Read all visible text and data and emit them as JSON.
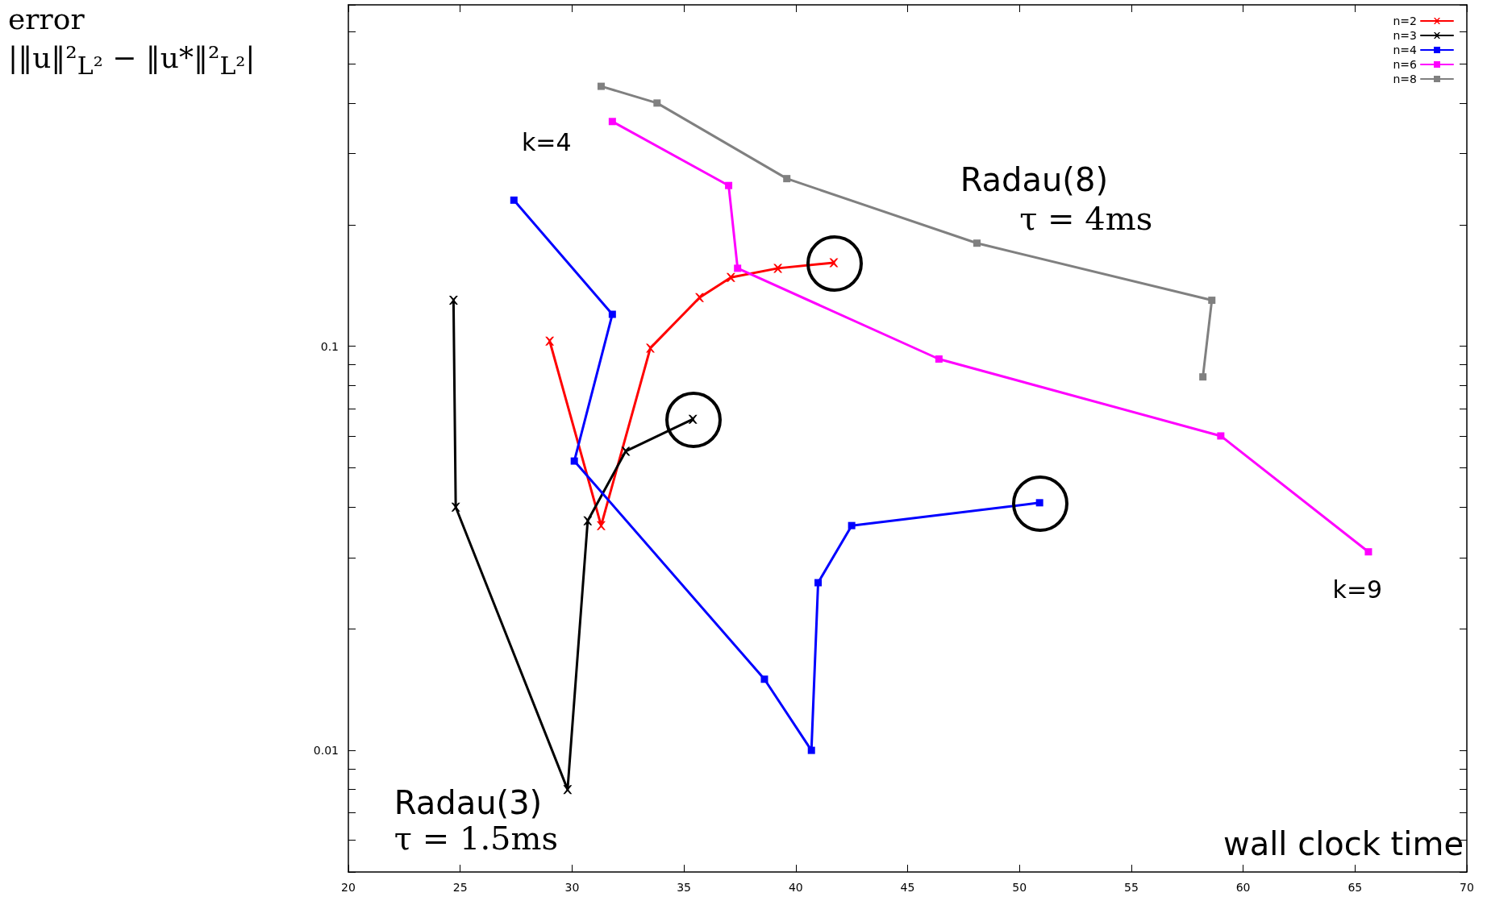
{
  "chart_data": {
    "type": "line",
    "xlabel": "wall clock time",
    "ylabel": "error\n|‖u‖²$_{L²}$ − ‖u*‖²$_{L²}$|",
    "log": "y",
    "xlim": [
      20,
      70
    ],
    "xticks": [
      20,
      25,
      30,
      35,
      40,
      45,
      50,
      55,
      60,
      65,
      70
    ],
    "ylim": [
      0.005,
      0.7
    ],
    "yticks": [
      {
        "value": 0.005,
        "label": null
      },
      {
        "value": 0.006,
        "label": null
      },
      {
        "value": 0.007,
        "label": null
      },
      {
        "value": 0.008,
        "label": null
      },
      {
        "value": 0.009,
        "label": null
      },
      {
        "value": 0.01,
        "label": "0.01"
      },
      {
        "value": 0.02,
        "label": null
      },
      {
        "value": 0.03,
        "label": null
      },
      {
        "value": 0.04,
        "label": null
      },
      {
        "value": 0.05,
        "label": null
      },
      {
        "value": 0.06,
        "label": null
      },
      {
        "value": 0.07,
        "label": null
      },
      {
        "value": 0.08,
        "label": null
      },
      {
        "value": 0.09,
        "label": null
      },
      {
        "value": 0.1,
        "label": "0.1"
      },
      {
        "value": 0.2,
        "label": null
      },
      {
        "value": 0.3,
        "label": null
      },
      {
        "value": 0.4,
        "label": null
      },
      {
        "value": 0.5,
        "label": null
      },
      {
        "value": 0.6,
        "label": null
      },
      {
        "value": 0.7,
        "label": null
      }
    ],
    "grid": false,
    "legend": "top right",
    "line_style": "solid",
    "series": [
      {
        "name": "n=2",
        "color": "#ff0000",
        "marker": "cross",
        "x": [
          29.0,
          31.3,
          33.5,
          35.7,
          37.1,
          39.2,
          41.7
        ],
        "values": [
          0.103,
          0.036,
          0.099,
          0.132,
          0.148,
          0.156,
          0.161
        ]
      },
      {
        "name": "n=3",
        "color": "#000000",
        "marker": "cross",
        "x": [
          24.7,
          24.8,
          29.8,
          30.7,
          32.4,
          35.4
        ],
        "values": [
          0.13,
          0.04,
          0.008,
          0.037,
          0.055,
          0.066
        ]
      },
      {
        "name": "n=4",
        "color": "#0000ff",
        "marker": "square",
        "x": [
          27.4,
          31.8,
          30.1,
          38.6,
          40.7,
          41.0,
          42.5,
          50.9
        ],
        "values": [
          0.23,
          0.12,
          0.052,
          0.015,
          0.01,
          0.026,
          0.036,
          0.041
        ]
      },
      {
        "name": "n=6",
        "color": "#ff00ff",
        "marker": "square",
        "x": [
          31.8,
          37.0,
          37.4,
          46.4,
          59.0,
          65.6
        ],
        "values": [
          0.36,
          0.25,
          0.156,
          0.093,
          0.06,
          0.031
        ]
      },
      {
        "name": "n=8",
        "color": "#808080",
        "marker": "square",
        "x": [
          31.3,
          33.8,
          39.6,
          48.1,
          58.6,
          58.2
        ],
        "values": [
          0.44,
          0.4,
          0.26,
          0.18,
          0.13,
          0.084
        ]
      }
    ],
    "annotations": [
      "k=4",
      "k=9",
      "Radau(8)",
      "τ = 4ms",
      "Radau(3)",
      "τ = 1.5ms"
    ]
  }
}
